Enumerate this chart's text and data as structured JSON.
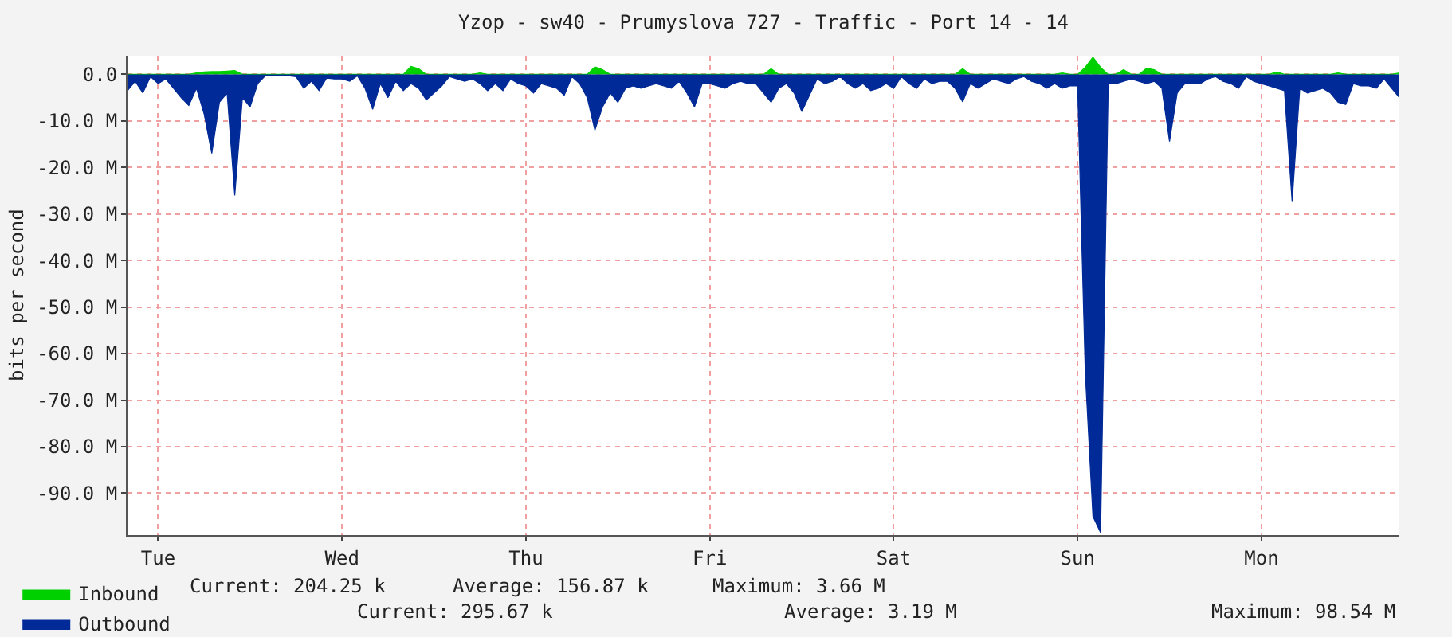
{
  "chart_data": {
    "type": "area",
    "title": "Yzop - sw40 - Prumyslova 727 - Traffic - Port 14 - 14",
    "ylabel": "bits per second",
    "categories": [
      null,
      null,
      null,
      null,
      "Tue",
      null,
      null,
      null,
      null,
      null,
      null,
      null,
      null,
      null,
      null,
      null,
      null,
      null,
      null,
      null,
      null,
      null,
      null,
      null,
      null,
      null,
      null,
      null,
      "Wed",
      null,
      null,
      null,
      null,
      null,
      null,
      null,
      null,
      null,
      null,
      null,
      null,
      null,
      null,
      null,
      null,
      null,
      null,
      null,
      null,
      null,
      null,
      null,
      "Thu",
      null,
      null,
      null,
      null,
      null,
      null,
      null,
      null,
      null,
      null,
      null,
      null,
      null,
      null,
      null,
      null,
      null,
      null,
      null,
      null,
      null,
      null,
      null,
      "Fri",
      null,
      null,
      null,
      null,
      null,
      null,
      null,
      null,
      null,
      null,
      null,
      null,
      null,
      null,
      null,
      null,
      null,
      null,
      null,
      null,
      null,
      null,
      null,
      "Sat",
      null,
      null,
      null,
      null,
      null,
      null,
      null,
      null,
      null,
      null,
      null,
      null,
      null,
      null,
      null,
      null,
      null,
      null,
      null,
      null,
      null,
      null,
      null,
      "Sun",
      null,
      null,
      null,
      null,
      null,
      null,
      null,
      null,
      null,
      null,
      null,
      null,
      null,
      null,
      null,
      null,
      null,
      null,
      null,
      null,
      null,
      null,
      null,
      "Mon",
      null,
      null,
      null,
      null,
      null,
      null,
      null,
      null,
      null,
      null,
      null,
      null,
      null,
      null,
      null,
      null,
      null,
      null
    ],
    "ylim": [
      -99,
      4
    ],
    "yticks": [
      {
        "value": 0,
        "label": "0.0"
      },
      {
        "value": -10,
        "label": "-10.0 M"
      },
      {
        "value": -20,
        "label": "-20.0 M"
      },
      {
        "value": -30,
        "label": "-30.0 M"
      },
      {
        "value": -40,
        "label": "-40.0 M"
      },
      {
        "value": -50,
        "label": "-50.0 M"
      },
      {
        "value": -60,
        "label": "-60.0 M"
      },
      {
        "value": -70,
        "label": "-70.0 M"
      },
      {
        "value": -80,
        "label": "-80.0 M"
      },
      {
        "value": -90,
        "label": "-90.0 M"
      }
    ],
    "grid": true,
    "legend": "bottom left",
    "series": [
      {
        "name": "Inbound",
        "color": "#00cf00",
        "values": [
          0,
          0,
          0,
          0,
          0,
          0,
          0,
          0,
          0,
          0.3,
          0.5,
          0.6,
          0.6,
          0.7,
          0.8,
          0,
          0,
          0,
          0,
          0,
          0,
          0,
          0,
          0,
          0,
          0,
          0,
          0,
          0,
          0,
          0,
          0,
          0,
          0,
          0,
          0,
          0,
          1.7,
          1.2,
          0,
          0,
          0,
          0,
          0,
          0,
          0,
          0.3,
          0,
          0,
          0,
          0,
          0,
          0,
          0,
          0,
          0,
          0,
          0,
          0,
          0,
          0,
          1.6,
          1,
          0,
          0,
          0,
          0,
          0,
          0,
          0,
          0,
          0,
          0,
          0,
          0,
          0,
          0,
          0,
          0,
          0,
          0,
          0,
          0,
          0,
          1.2,
          0,
          0,
          0,
          0,
          0,
          0,
          0,
          0,
          0,
          0,
          0,
          0,
          0,
          0,
          0,
          0,
          0,
          0,
          0,
          0,
          0,
          0,
          0,
          0,
          1.2,
          0,
          0,
          0,
          0,
          0,
          0,
          0,
          0,
          0,
          0,
          0,
          0,
          0.3,
          0,
          0,
          1.5,
          3.7,
          1.5,
          0,
          0,
          1,
          0,
          0,
          1.3,
          1,
          0,
          0,
          0,
          0,
          0,
          0,
          0,
          0,
          0,
          0,
          0,
          0,
          0,
          0,
          0,
          0.5,
          0,
          0,
          0,
          0,
          0,
          0,
          0,
          0.3,
          0,
          0,
          0,
          0,
          0,
          0,
          0,
          0.3
        ]
      },
      {
        "name": "Outbound",
        "color": "#002a97",
        "values": [
          -3.5,
          -1.5,
          -4,
          -0.5,
          -2,
          -1,
          -3,
          -5,
          -6.7,
          -3,
          -8.5,
          -17,
          -6,
          -4,
          -26,
          -5,
          -7,
          -2,
          -0.3,
          -0.3,
          -0.3,
          -0.3,
          -0.5,
          -3,
          -1.5,
          -3.5,
          -0.8,
          -1,
          -1,
          -1.5,
          -0.3,
          -3,
          -7.5,
          -2,
          -5,
          -1.5,
          -3.5,
          -2,
          -3,
          -5.5,
          -4,
          -2.5,
          -0.5,
          -1,
          -1.5,
          -1,
          -2,
          -3.5,
          -2,
          -3.5,
          -1,
          -2,
          -2.5,
          -4,
          -2,
          -2.5,
          -3,
          -4.5,
          -0.5,
          -2,
          -5,
          -12,
          -7,
          -4,
          -6,
          -3,
          -2.5,
          -3,
          -2.5,
          -2,
          -2.5,
          -3,
          -1.5,
          -4,
          -7,
          -2,
          -2,
          -2.5,
          -3,
          -2,
          -1.5,
          -2,
          -2,
          -4,
          -6,
          -3,
          -2,
          -4,
          -8,
          -4.5,
          -1,
          -2,
          -1.5,
          -0.5,
          -2,
          -3,
          -2,
          -3.5,
          -3,
          -2,
          -3,
          -0.5,
          -2,
          -3,
          -1,
          -2,
          -1.5,
          -1.5,
          -3,
          -5.9,
          -2,
          -3,
          -2,
          -1,
          -1.5,
          -2,
          -1,
          -0.5,
          -1.5,
          -2,
          -3,
          -2,
          -3,
          -2.5,
          -2.5,
          -64,
          -95,
          -98.5,
          -2,
          -2,
          -1.5,
          -1,
          -1.5,
          -2,
          -1.5,
          -3,
          -14.4,
          -4,
          -2,
          -2,
          -2,
          -1,
          -0.5,
          -1.5,
          -2,
          -3,
          -0.5,
          -1.5,
          -2,
          -2.5,
          -3,
          -3.5,
          -27.4,
          -3,
          -4,
          -3.5,
          -3,
          -4,
          -6,
          -6.5,
          -2,
          -2.5,
          -2.5,
          -3,
          -1,
          -3,
          -5
        ]
      }
    ],
    "annotations": [
      "Current: 204.25 k",
      "Average: 156.87 k",
      "Maximum: 3.66 M",
      "Current: 295.67 k",
      "Average: 3.19 M",
      "Maximum: 98.54 M"
    ]
  }
}
